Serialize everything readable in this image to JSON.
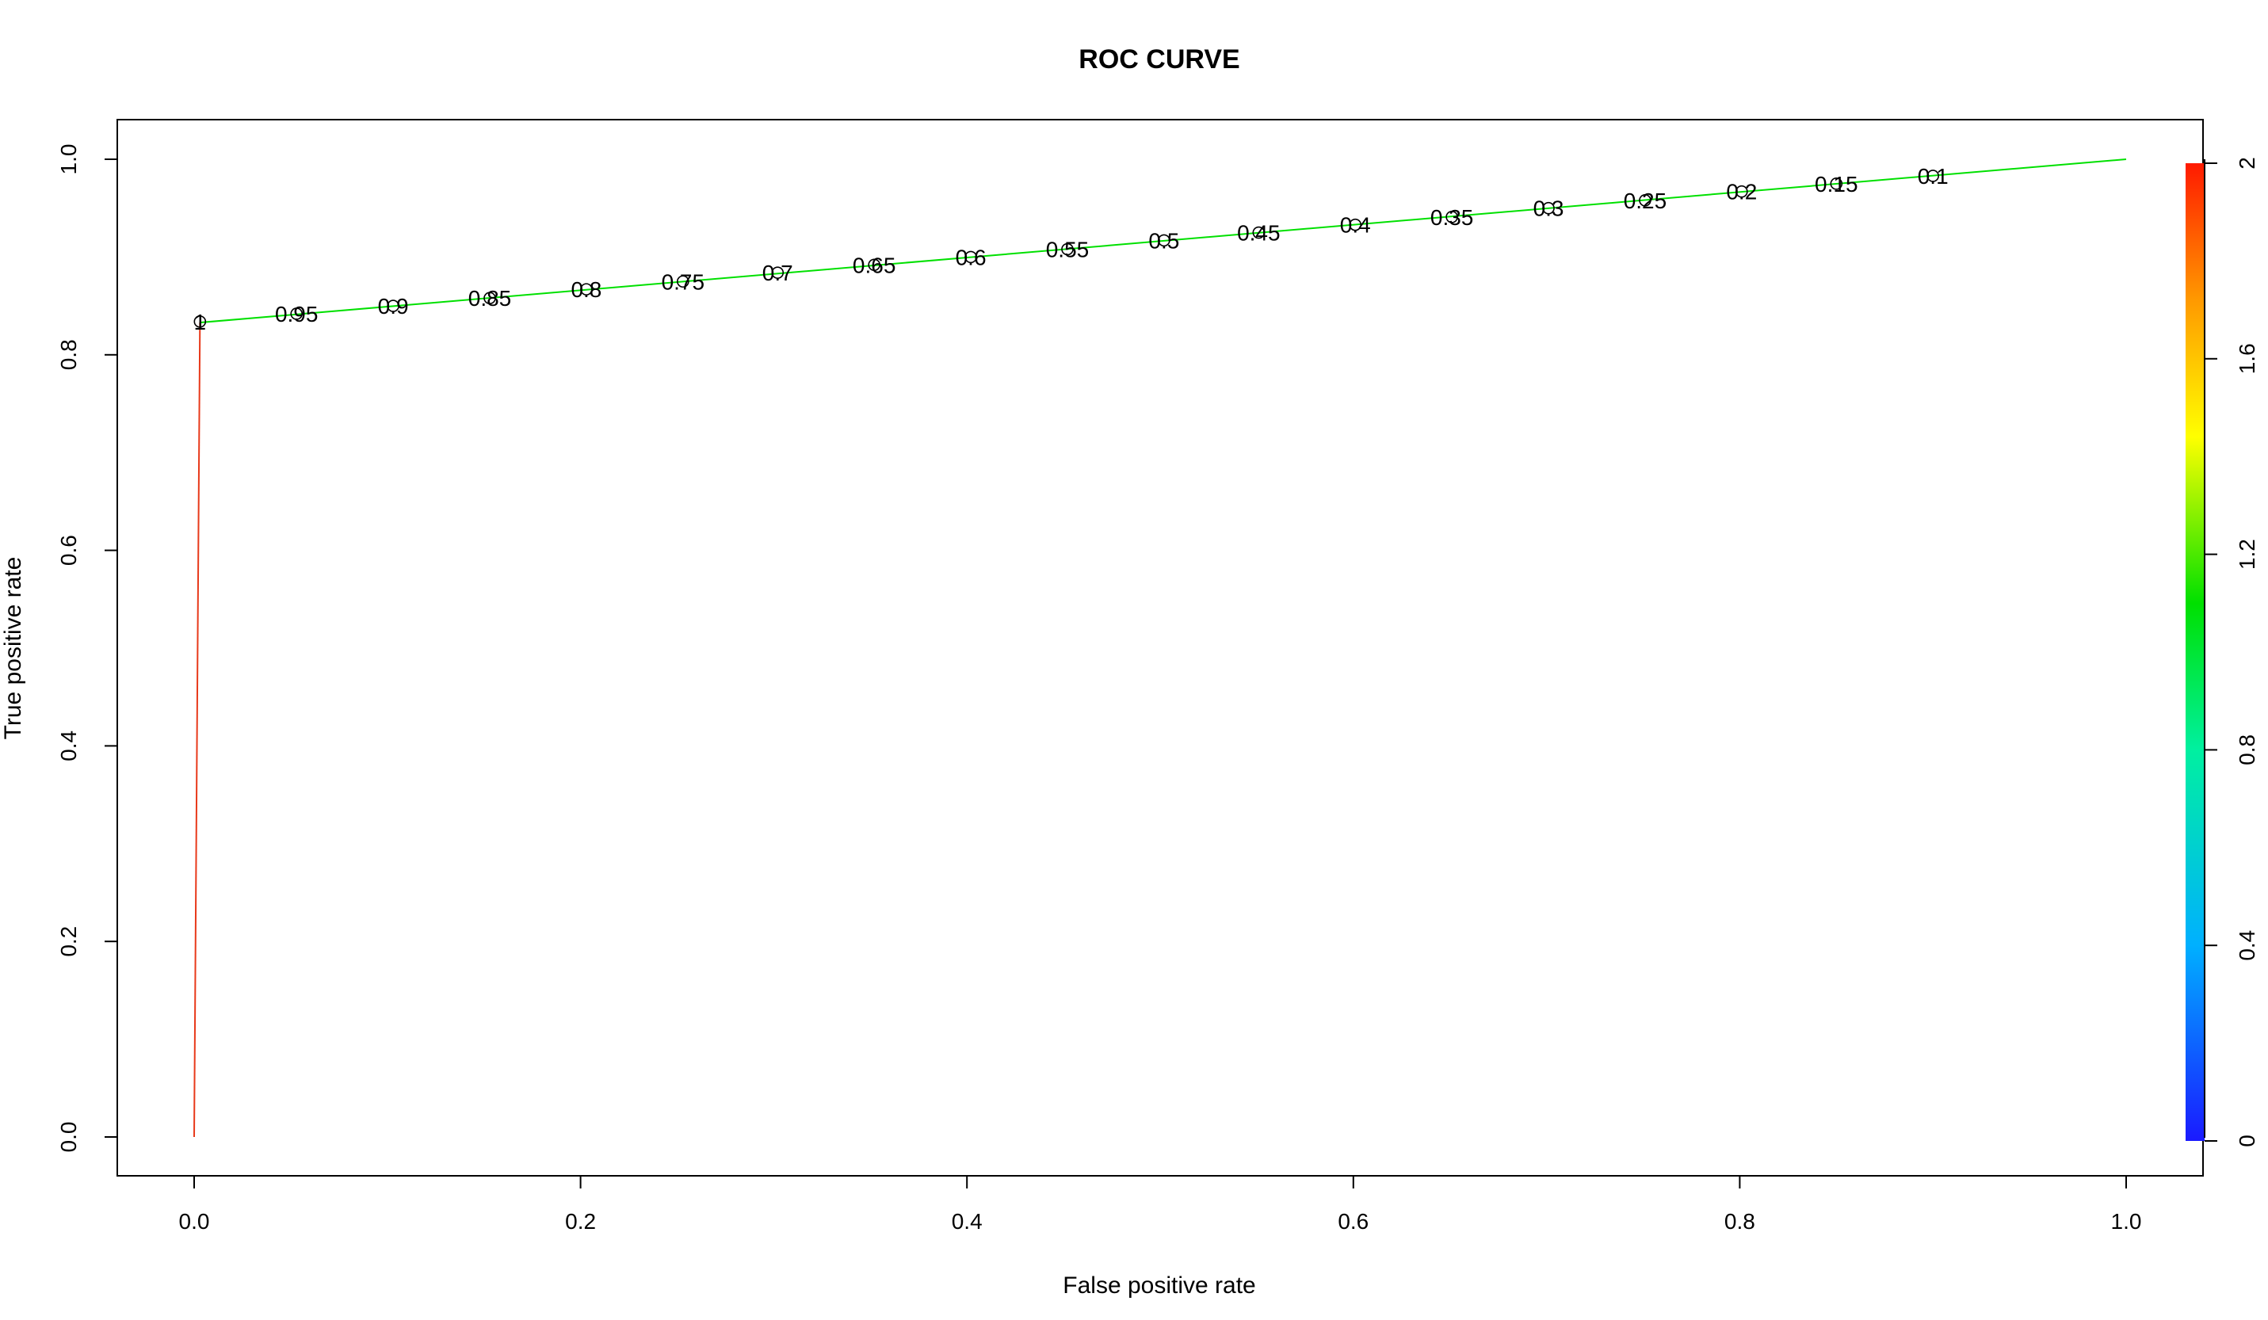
{
  "chart_data": {
    "type": "line",
    "title": "ROC CURVE",
    "xlabel": "False positive rate",
    "ylabel": "True positive rate",
    "xlim": [
      0,
      1
    ],
    "ylim": [
      0,
      1
    ],
    "grid": false,
    "legend": "none",
    "x_ticks": [
      "0.0",
      "0.2",
      "0.4",
      "0.6",
      "0.8",
      "1.0"
    ],
    "y_ticks": [
      "0.0",
      "0.2",
      "0.4",
      "0.6",
      "0.8",
      "1.0"
    ],
    "colorbar": {
      "placement": "right",
      "range": [
        0,
        2
      ],
      "ticks": [
        "0",
        "0.4",
        "0.8",
        "1.2",
        "1.6",
        "2"
      ]
    },
    "series": [
      {
        "points": [
          {
            "x": 0.0,
            "y": 0.0,
            "color": "#E8391A"
          },
          {
            "x": 0.003,
            "y": 0.833,
            "color": "#E8391A"
          },
          {
            "x": 1.0,
            "y": 1.0,
            "color": "#00E000"
          }
        ]
      }
    ],
    "cutoffs": [
      {
        "x": 0.003,
        "y": 0.834,
        "label": "1"
      },
      {
        "x": 0.053,
        "y": 0.842,
        "label": "0.95"
      },
      {
        "x": 0.103,
        "y": 0.85,
        "label": "0.9"
      },
      {
        "x": 0.153,
        "y": 0.858,
        "label": "0.85"
      },
      {
        "x": 0.203,
        "y": 0.867,
        "label": "0.8"
      },
      {
        "x": 0.253,
        "y": 0.875,
        "label": "0.75"
      },
      {
        "x": 0.302,
        "y": 0.884,
        "label": "0.7"
      },
      {
        "x": 0.352,
        "y": 0.892,
        "label": "0.65"
      },
      {
        "x": 0.402,
        "y": 0.9,
        "label": "0.6"
      },
      {
        "x": 0.452,
        "y": 0.908,
        "label": "0.55"
      },
      {
        "x": 0.502,
        "y": 0.917,
        "label": "0.5"
      },
      {
        "x": 0.551,
        "y": 0.925,
        "label": "0.45"
      },
      {
        "x": 0.601,
        "y": 0.933,
        "label": "0.4"
      },
      {
        "x": 0.651,
        "y": 0.941,
        "label": "0.35"
      },
      {
        "x": 0.701,
        "y": 0.95,
        "label": "0.3"
      },
      {
        "x": 0.751,
        "y": 0.958,
        "label": "0.25"
      },
      {
        "x": 0.801,
        "y": 0.967,
        "label": "0.2"
      },
      {
        "x": 0.85,
        "y": 0.975,
        "label": "0.15"
      },
      {
        "x": 0.9,
        "y": 0.983,
        "label": "0.1"
      }
    ]
  }
}
